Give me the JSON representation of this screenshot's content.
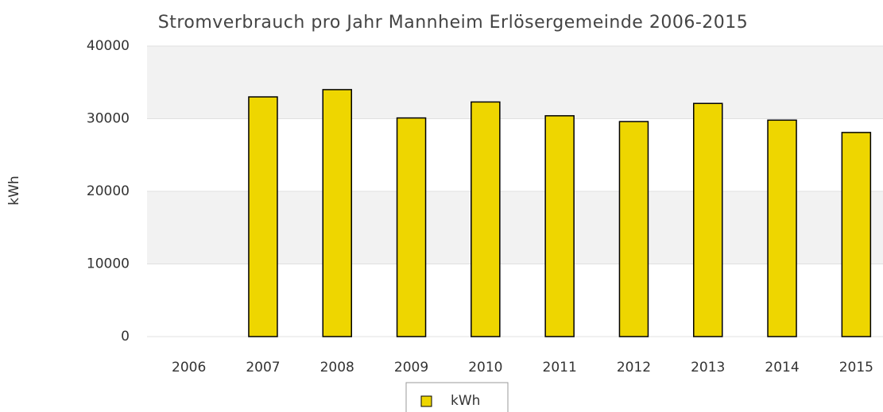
{
  "chart_data": {
    "type": "bar",
    "title": "Stromverbrauch pro Jahr Mannheim Erlösergemeinde 2006-2015",
    "y_label": "kWh",
    "categories": [
      "2006",
      "2007",
      "2008",
      "2009",
      "2010",
      "2011",
      "2012",
      "2013",
      "2014",
      "2015"
    ],
    "series": [
      {
        "name": "kWh",
        "color": "#eed600",
        "values": [
          null,
          33000,
          34000,
          30100,
          32300,
          30400,
          29600,
          32100,
          29800,
          28100
        ]
      }
    ],
    "ylim": [
      0,
      40000
    ],
    "yticks": [
      0,
      10000,
      20000,
      30000,
      40000
    ],
    "grid": true
  }
}
